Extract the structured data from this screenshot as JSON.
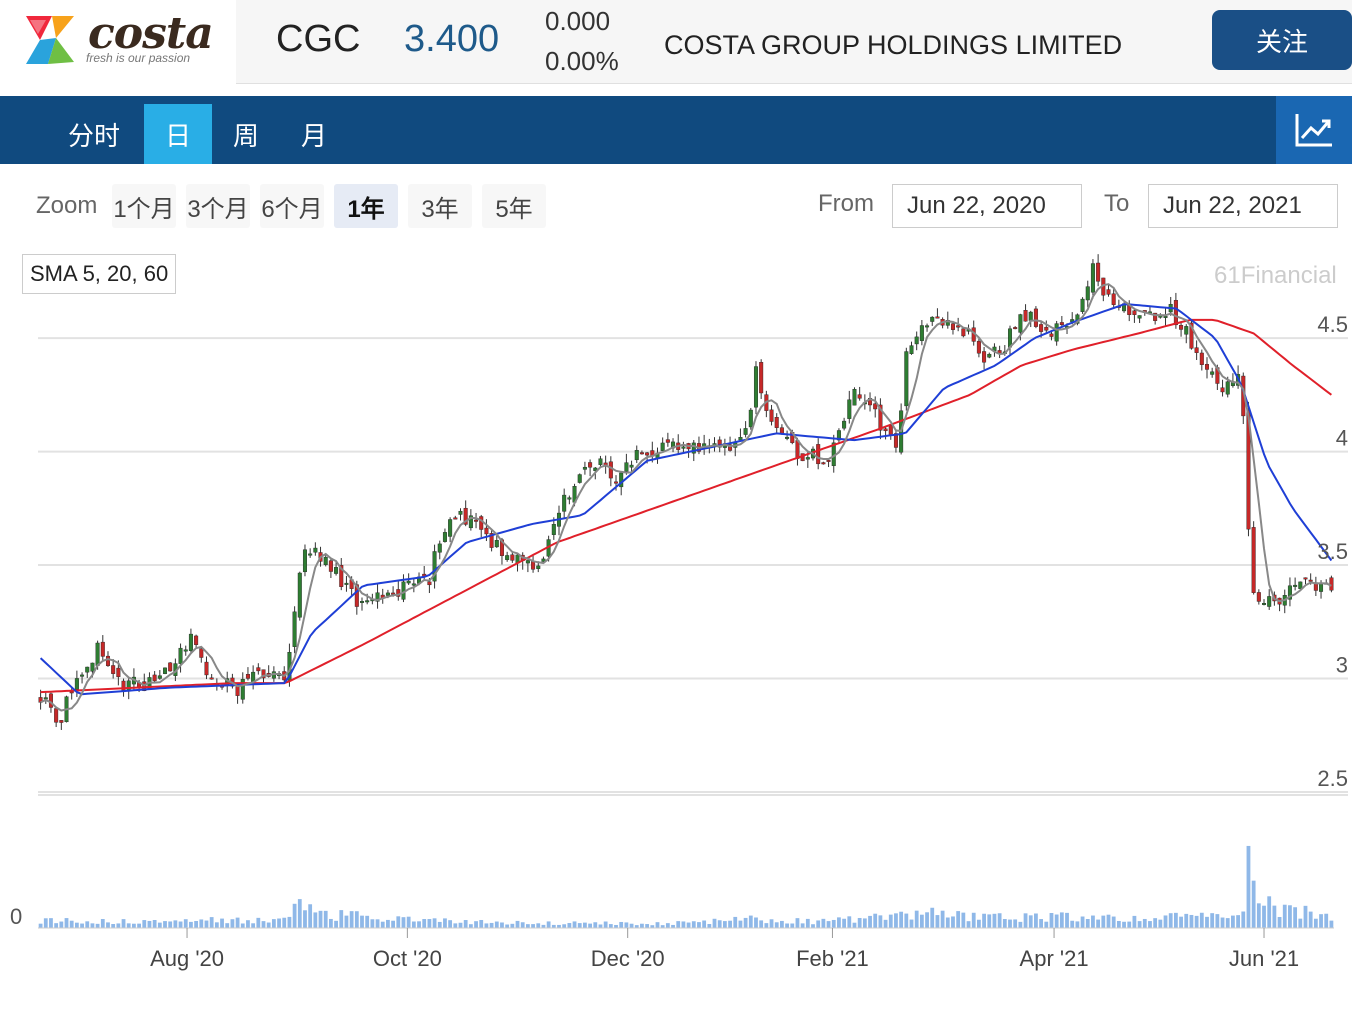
{
  "header": {
    "logo_word": "costa",
    "logo_tagline": "fresh is our passion",
    "ticker": "CGC",
    "price": "3.400",
    "change_abs": "0.000",
    "change_pct": "0.00%",
    "company_name": "COSTA GROUP HOLDINGS LIMITED",
    "follow_label": "关注"
  },
  "tabs": [
    {
      "label": "分时",
      "active": false
    },
    {
      "label": "日",
      "active": true
    },
    {
      "label": "周",
      "active": false
    },
    {
      "label": "月",
      "active": false
    }
  ],
  "chart_toggle_icon": "line-chart-icon",
  "range": {
    "zoom_label": "Zoom",
    "buttons": [
      {
        "label": "1个月",
        "active": false
      },
      {
        "label": "3个月",
        "active": false
      },
      {
        "label": "6个月",
        "active": false
      },
      {
        "label": "1年",
        "active": true
      },
      {
        "label": "3年",
        "active": false
      },
      {
        "label": "5年",
        "active": false
      }
    ],
    "from_label": "From",
    "from_value": "Jun 22, 2020",
    "to_label": "To",
    "to_value": "Jun 22, 2021"
  },
  "indicator_label": "SMA 5, 20, 60",
  "credit": "61Financial",
  "colors": {
    "up": "#2e7d32",
    "down": "#c62828",
    "sma5": "#888888",
    "sma20": "#1f3fd6",
    "sma60": "#e0202a",
    "volume": "#8fb8e8",
    "brand_blue": "#104a7f",
    "active_tab": "#29aee6"
  },
  "chart_data": {
    "type": "candlestick",
    "y_ticks": [
      "4.5",
      "4",
      "3.5",
      "3",
      "2.5"
    ],
    "ylim": [
      2.5,
      4.8
    ],
    "volume_axis_label": "0",
    "x_tick_labels": [
      "Aug '20",
      "Oct '20",
      "Dec '20",
      "Feb '21",
      "Apr '21",
      "Jun '21"
    ],
    "x_tick_positions": [
      0.115,
      0.285,
      0.455,
      0.613,
      0.784,
      0.946
    ],
    "series": [
      {
        "name": "SMA 5"
      },
      {
        "name": "SMA 20"
      },
      {
        "name": "SMA 60"
      }
    ],
    "close_anchors": [
      [
        0.0,
        2.93
      ],
      [
        0.015,
        2.82
      ],
      [
        0.03,
        3.02
      ],
      [
        0.045,
        3.14
      ],
      [
        0.06,
        2.98
      ],
      [
        0.08,
        2.97
      ],
      [
        0.1,
        3.06
      ],
      [
        0.115,
        3.18
      ],
      [
        0.13,
        3.02
      ],
      [
        0.15,
        2.95
      ],
      [
        0.165,
        3.0
      ],
      [
        0.18,
        3.05
      ],
      [
        0.19,
        2.96
      ],
      [
        0.195,
        3.18
      ],
      [
        0.2,
        3.48
      ],
      [
        0.205,
        3.6
      ],
      [
        0.215,
        3.55
      ],
      [
        0.235,
        3.42
      ],
      [
        0.25,
        3.3
      ],
      [
        0.265,
        3.36
      ],
      [
        0.28,
        3.4
      ],
      [
        0.29,
        3.45
      ],
      [
        0.3,
        3.42
      ],
      [
        0.31,
        3.64
      ],
      [
        0.325,
        3.72
      ],
      [
        0.34,
        3.66
      ],
      [
        0.355,
        3.58
      ],
      [
        0.37,
        3.52
      ],
      [
        0.38,
        3.48
      ],
      [
        0.39,
        3.56
      ],
      [
        0.405,
        3.78
      ],
      [
        0.42,
        3.92
      ],
      [
        0.435,
        3.95
      ],
      [
        0.445,
        3.88
      ],
      [
        0.46,
        3.98
      ],
      [
        0.48,
        4.02
      ],
      [
        0.5,
        4.01
      ],
      [
        0.52,
        4.0
      ],
      [
        0.54,
        4.03
      ],
      [
        0.55,
        4.2
      ],
      [
        0.555,
        4.42
      ],
      [
        0.56,
        4.22
      ],
      [
        0.57,
        4.08
      ],
      [
        0.585,
        4.0
      ],
      [
        0.6,
        3.98
      ],
      [
        0.61,
        3.96
      ],
      [
        0.62,
        4.08
      ],
      [
        0.63,
        4.28
      ],
      [
        0.64,
        4.22
      ],
      [
        0.65,
        4.12
      ],
      [
        0.66,
        4.1
      ],
      [
        0.665,
        4.0
      ],
      [
        0.67,
        4.45
      ],
      [
        0.68,
        4.55
      ],
      [
        0.695,
        4.6
      ],
      [
        0.71,
        4.52
      ],
      [
        0.72,
        4.5
      ],
      [
        0.73,
        4.42
      ],
      [
        0.745,
        4.45
      ],
      [
        0.755,
        4.55
      ],
      [
        0.765,
        4.6
      ],
      [
        0.775,
        4.55
      ],
      [
        0.785,
        4.52
      ],
      [
        0.795,
        4.58
      ],
      [
        0.805,
        4.65
      ],
      [
        0.815,
        4.8
      ],
      [
        0.82,
        4.72
      ],
      [
        0.83,
        4.68
      ],
      [
        0.845,
        4.62
      ],
      [
        0.86,
        4.6
      ],
      [
        0.875,
        4.62
      ],
      [
        0.885,
        4.55
      ],
      [
        0.895,
        4.45
      ],
      [
        0.905,
        4.35
      ],
      [
        0.915,
        4.28
      ],
      [
        0.925,
        4.32
      ],
      [
        0.93,
        4.42
      ],
      [
        0.935,
        3.72
      ],
      [
        0.94,
        3.35
      ],
      [
        0.95,
        3.34
      ],
      [
        0.96,
        3.36
      ],
      [
        0.97,
        3.45
      ],
      [
        0.98,
        3.42
      ],
      [
        0.99,
        3.38
      ],
      [
        1.0,
        3.4
      ]
    ],
    "volume_anchors": [
      [
        0.0,
        0.06
      ],
      [
        0.1,
        0.06
      ],
      [
        0.19,
        0.07
      ],
      [
        0.2,
        0.27
      ],
      [
        0.21,
        0.12
      ],
      [
        0.3,
        0.06
      ],
      [
        0.4,
        0.04
      ],
      [
        0.5,
        0.04
      ],
      [
        0.55,
        0.08
      ],
      [
        0.6,
        0.05
      ],
      [
        0.67,
        0.1
      ],
      [
        0.68,
        0.14
      ],
      [
        0.72,
        0.09
      ],
      [
        0.8,
        0.09
      ],
      [
        0.84,
        0.08
      ],
      [
        0.9,
        0.1
      ],
      [
        0.92,
        0.07
      ],
      [
        0.932,
        0.1
      ],
      [
        0.936,
        0.65
      ],
      [
        0.94,
        0.48
      ],
      [
        0.946,
        0.2
      ],
      [
        0.96,
        0.16
      ],
      [
        0.98,
        0.13
      ],
      [
        1.0,
        0.1
      ]
    ],
    "sma20_anchors": [
      [
        0.0,
        3.09
      ],
      [
        0.03,
        2.93
      ],
      [
        0.1,
        2.96
      ],
      [
        0.19,
        2.98
      ],
      [
        0.21,
        3.2
      ],
      [
        0.25,
        3.41
      ],
      [
        0.3,
        3.45
      ],
      [
        0.33,
        3.6
      ],
      [
        0.38,
        3.68
      ],
      [
        0.42,
        3.72
      ],
      [
        0.47,
        3.96
      ],
      [
        0.52,
        4.02
      ],
      [
        0.57,
        4.08
      ],
      [
        0.63,
        4.05
      ],
      [
        0.67,
        4.08
      ],
      [
        0.7,
        4.28
      ],
      [
        0.74,
        4.38
      ],
      [
        0.77,
        4.5
      ],
      [
        0.8,
        4.57
      ],
      [
        0.84,
        4.65
      ],
      [
        0.88,
        4.63
      ],
      [
        0.91,
        4.5
      ],
      [
        0.93,
        4.3
      ],
      [
        0.95,
        3.95
      ],
      [
        0.97,
        3.75
      ],
      [
        1.0,
        3.52
      ]
    ],
    "sma60_anchors": [
      [
        0.0,
        2.94
      ],
      [
        0.15,
        2.98
      ],
      [
        0.19,
        2.98
      ],
      [
        0.25,
        3.15
      ],
      [
        0.3,
        3.3
      ],
      [
        0.4,
        3.6
      ],
      [
        0.5,
        3.8
      ],
      [
        0.6,
        4.0
      ],
      [
        0.65,
        4.1
      ],
      [
        0.72,
        4.25
      ],
      [
        0.76,
        4.38
      ],
      [
        0.8,
        4.45
      ],
      [
        0.85,
        4.52
      ],
      [
        0.89,
        4.58
      ],
      [
        0.91,
        4.58
      ],
      [
        0.94,
        4.52
      ],
      [
        0.97,
        4.38
      ],
      [
        1.0,
        4.25
      ]
    ]
  }
}
